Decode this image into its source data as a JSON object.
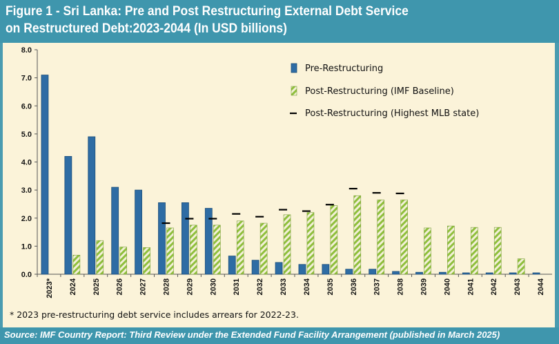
{
  "title_line1": "Figure 1 - Sri Lanka: Pre and Post Restructuring External Debt Service",
  "title_line2": "on Restructured Debt:2023-2044 (In USD billions)",
  "footnote": "* 2023 pre-restructuring debt service includes arrears for 2022-23.",
  "source": "Source: IMF Country Report: Third Review under the Extended Fund Facility Arrangement (published in March 2025)",
  "colors": {
    "pre": "#2e6ca4",
    "post_stripe": "#8fbf3c",
    "post_bg": "#f3f0d8",
    "mlb": "#000000",
    "header": "#3f96ad",
    "panel": "#fbf3d9"
  },
  "chart_data": {
    "type": "bar",
    "categories": [
      "2023*",
      "2024",
      "2025",
      "2026",
      "2027",
      "2028",
      "2029",
      "2030",
      "2031",
      "2032",
      "2033",
      "2034",
      "2035",
      "2036",
      "2037",
      "2038",
      "2039",
      "2040",
      "2041",
      "2042",
      "2043",
      "2044"
    ],
    "series": [
      {
        "name": "Pre-Restructuring",
        "style": "solid",
        "values": [
          7.1,
          4.2,
          4.9,
          3.1,
          3.0,
          2.55,
          2.55,
          2.35,
          0.65,
          0.5,
          0.42,
          0.35,
          0.35,
          0.18,
          0.18,
          0.1,
          0.07,
          0.07,
          0.05,
          0.05,
          0.05,
          0.05
        ]
      },
      {
        "name": "Post-Restructuring (IMF Baseline)",
        "style": "striped",
        "values": [
          null,
          0.68,
          1.2,
          0.97,
          0.95,
          1.65,
          1.75,
          1.75,
          1.9,
          1.82,
          2.12,
          2.2,
          2.45,
          2.8,
          2.65,
          2.65,
          1.65,
          1.72,
          1.67,
          1.67,
          0.55,
          null
        ]
      },
      {
        "name": "Post-Restructuring (Highest MLB state)",
        "style": "marker",
        "values": [
          null,
          null,
          null,
          null,
          null,
          1.82,
          1.98,
          1.98,
          2.15,
          2.05,
          2.3,
          2.25,
          2.48,
          3.05,
          2.9,
          2.88,
          null,
          null,
          null,
          null,
          null,
          null
        ]
      }
    ],
    "y_ticks": [
      "0.0",
      "1.0",
      "2.0",
      "3.0",
      "4.0",
      "5.0",
      "6.0",
      "7.0",
      "8.0"
    ],
    "ylim": [
      0,
      8
    ],
    "grid": false,
    "legend_position": "top-right"
  }
}
